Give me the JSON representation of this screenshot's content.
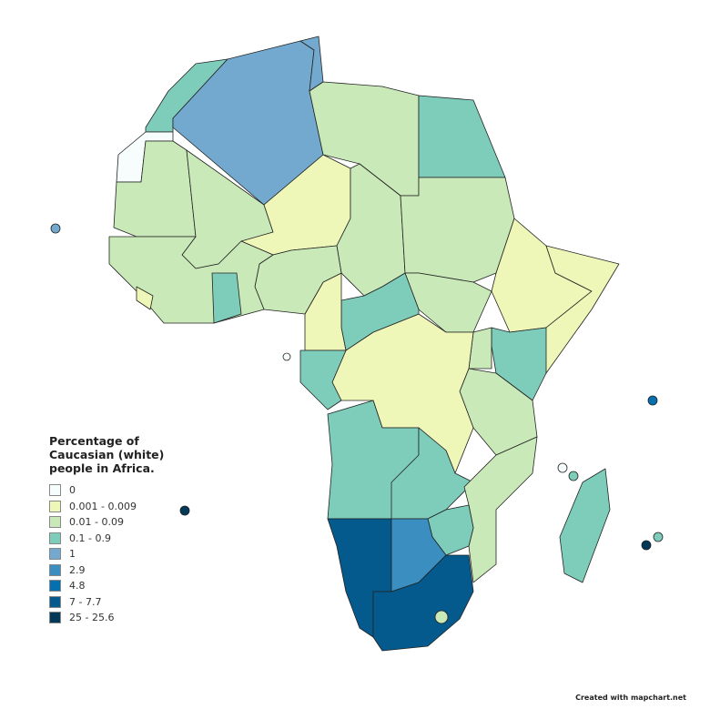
{
  "legend": {
    "title": "Percentage of Caucasian (white) people in Africa.",
    "items": [
      {
        "label": "0",
        "color": "#f7fcfd"
      },
      {
        "label": "0.001 - 0.009",
        "color": "#eef7b7"
      },
      {
        "label": "0.01 - 0.09",
        "color": "#c9e9b9"
      },
      {
        "label": "0.1 - 0.9",
        "color": "#7ecdbb"
      },
      {
        "label": "1",
        "color": "#74a9cf"
      },
      {
        "label": "2.9",
        "color": "#3a8fc0"
      },
      {
        "label": "4.8",
        "color": "#0570b0"
      },
      {
        "label": "7 - 7.7",
        "color": "#045a8d"
      },
      {
        "label": "25 - 25.6",
        "color": "#023858"
      }
    ]
  },
  "regions": [
    {
      "name": "Morocco",
      "class": 3
    },
    {
      "name": "Western Sahara",
      "class": 0
    },
    {
      "name": "Algeria",
      "class": 4
    },
    {
      "name": "Tunisia",
      "class": 4
    },
    {
      "name": "Libya",
      "class": 2
    },
    {
      "name": "Egypt",
      "class": 3
    },
    {
      "name": "Mauritania",
      "class": 2
    },
    {
      "name": "Mali",
      "class": 2
    },
    {
      "name": "Niger",
      "class": 1
    },
    {
      "name": "Chad",
      "class": 2
    },
    {
      "name": "Sudan",
      "class": 2
    },
    {
      "name": "South Sudan",
      "class": 2
    },
    {
      "name": "Ethiopia",
      "class": 1
    },
    {
      "name": "Somalia",
      "class": 1
    },
    {
      "name": "Kenya",
      "class": 3
    },
    {
      "name": "Uganda",
      "class": 2
    },
    {
      "name": "Tanzania",
      "class": 2
    },
    {
      "name": "DR Congo",
      "class": 1
    },
    {
      "name": "Central African Republic",
      "class": 3
    },
    {
      "name": "Cameroon",
      "class": 1
    },
    {
      "name": "Nigeria",
      "class": 2
    },
    {
      "name": "West Africa",
      "class": 2
    },
    {
      "name": "Ghana",
      "class": 3
    },
    {
      "name": "Liberia",
      "class": 1
    },
    {
      "name": "Congo-Gabon",
      "class": 3
    },
    {
      "name": "Angola",
      "class": 3
    },
    {
      "name": "Zambia",
      "class": 3
    },
    {
      "name": "Mozambique",
      "class": 2
    },
    {
      "name": "Zimbabwe",
      "class": 3
    },
    {
      "name": "Namibia",
      "class": 7
    },
    {
      "name": "Botswana",
      "class": 5
    },
    {
      "name": "South Africa",
      "class": 7
    },
    {
      "name": "Madagascar",
      "class": 3
    }
  ],
  "islands": [
    {
      "name": "Cape Verde",
      "class": 4
    },
    {
      "name": "Sao Tome",
      "class": 0
    },
    {
      "name": "Saint Helena",
      "class": 8
    },
    {
      "name": "Seychelles",
      "class": 6
    },
    {
      "name": "Mayotte",
      "class": 0
    },
    {
      "name": "Comoros",
      "class": 3
    },
    {
      "name": "Mauritius",
      "class": 8
    },
    {
      "name": "Reunion",
      "class": 3
    },
    {
      "name": "Lesotho",
      "class": 2
    }
  ],
  "credit": "Created with mapchart.net"
}
